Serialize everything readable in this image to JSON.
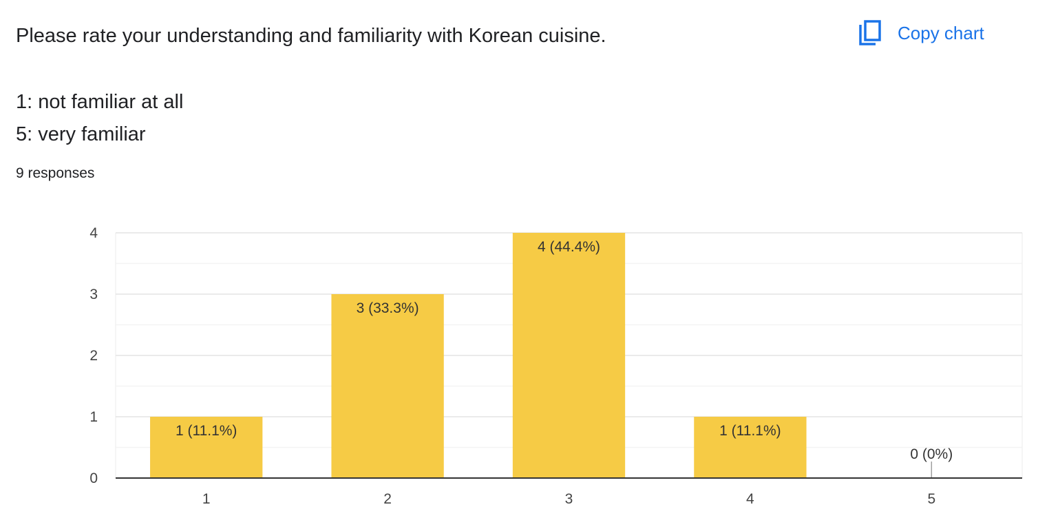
{
  "question": {
    "title": "Please rate your understanding and familiarity with Korean cuisine.",
    "scale_low": "1: not familiar at all",
    "scale_high": "5: very familiar",
    "response_count": "9 responses"
  },
  "toolbar": {
    "copy_chart_label": "Copy chart",
    "copy_icon": "copy-icon"
  },
  "colors": {
    "bar": "#f6cb45",
    "gridline": "#ebebeb",
    "axis": "#333333",
    "accent": "#1a73e8"
  },
  "chart_data": {
    "type": "bar",
    "categories": [
      "1",
      "2",
      "3",
      "4",
      "5"
    ],
    "values": [
      1,
      3,
      4,
      1,
      0
    ],
    "data_labels": [
      "1 (11.1%)",
      "3 (33.3%)",
      "4 (44.4%)",
      "1 (11.1%)",
      "0 (0%)"
    ],
    "ylim": [
      0,
      4
    ],
    "yticks": [
      "0",
      "1",
      "2",
      "3",
      "4"
    ],
    "title": "",
    "xlabel": "",
    "ylabel": "",
    "grid": true,
    "legend": "none"
  }
}
